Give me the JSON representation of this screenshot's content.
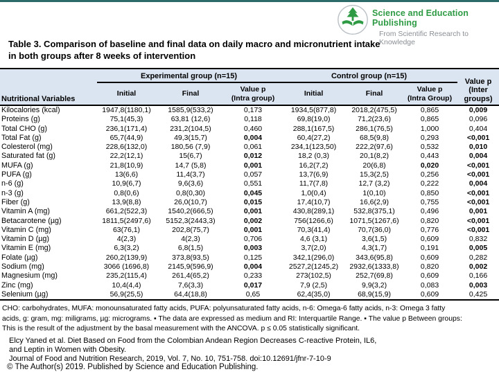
{
  "brand": {
    "name": "Science and Education Publishing",
    "tagline": "From Scientific Research to Knowledge",
    "logo_green": "#2e9b44",
    "tagline_gray": "#8a8f94"
  },
  "title": "Table 3. Comparison of baseline and final data on daily macro and micronutrient intake\nin both groups after 8 weeks of intervention",
  "table": {
    "header": {
      "variables": "Nutritional Variables",
      "experimental_group": "Experimental group (n=15)",
      "control_group": "Control group (n=15)",
      "inter_group": "Value p\n(Inter\ngroups)"
    },
    "sub_headers": [
      "Initial",
      "Final",
      "Value p\n(Intra group)",
      "Initial",
      "Final",
      "Value p\n(Intra Group)"
    ],
    "rows": [
      {
        "label": "Kilocalories (kcal)",
        "values": [
          "1947,8(1180,1)",
          "1585,9(533,2)",
          "0,173",
          "1934,5(877,8)",
          "2018,2(475,5)",
          "0,865",
          "0,009"
        ],
        "bold": [
          6
        ]
      },
      {
        "label": "Proteins (g)",
        "values": [
          "75,1(45,3)",
          "63,81 (12,6)",
          "0,118",
          "69,8(19,0)",
          "71,2(23,6)",
          "0,865",
          "0,096"
        ],
        "bold": []
      },
      {
        "label": "Total CHO (g)",
        "values": [
          "236,1(171,4)",
          "231,2(104,5)",
          "0,460",
          "288,1(167,5)",
          "286,1(76,5)",
          "1,000",
          "0,404"
        ],
        "bold": []
      },
      {
        "label": "Total Fat (g)",
        "values": [
          "65,7(44,9)",
          "49,3(15,7)",
          "0,004",
          "60,4(27,2)",
          "68,5(9,8)",
          "0,293",
          "<0,001"
        ],
        "bold": [
          2,
          6
        ]
      },
      {
        "label": "Colesterol (mg)",
        "values": [
          "228,6(132,0)",
          "180,56 (7,9)",
          "0,061",
          "234,1(123,50)",
          "222,2(97,6)",
          "0,532",
          "0,010"
        ],
        "bold": [
          6
        ]
      },
      {
        "label": "Saturated fat (g)",
        "values": [
          "22,2(12,1)",
          "15(6,7)",
          "0,012",
          "18,2 (0,3)",
          "20,1(8,2)",
          "0,443",
          "0,004"
        ],
        "bold": [
          2,
          6
        ]
      },
      {
        "label": "MUFA (g)",
        "values": [
          "21,8(10,9)",
          "14,7 (5,8)",
          "0,001",
          "16,2(7,2)",
          "20(6,8)",
          "0,020",
          "<0,001"
        ],
        "bold": [
          2,
          5,
          6
        ]
      },
      {
        "label": "PUFA (g)",
        "values": [
          "13(6,6)",
          "11,4(3,7)",
          "0,057",
          "13,7(6,9)",
          "15,3(2,5)",
          "0,256",
          "<0,001"
        ],
        "bold": [
          6
        ]
      },
      {
        "label": "n-6 (g)",
        "values": [
          "10,9(6,7)",
          "9,6(3,6)",
          "0,551",
          "11,7(7,8)",
          "12,7 (3,2)",
          "0,222",
          "0,004"
        ],
        "bold": [
          6
        ]
      },
      {
        "label": "n-3 (g)",
        "values": [
          "0,8(0,6)",
          "0,8(0,30)",
          "0,045",
          "1,0(0,4)",
          "1(0,10)",
          "0,850",
          "<0,001"
        ],
        "bold": [
          2,
          6
        ]
      },
      {
        "label": "Fiber (g)",
        "values": [
          "13,9(8,8)",
          "26,0(10,7)",
          "0,015",
          "17,4(10,7)",
          "16,6(2,9)",
          "0,755",
          "<0,001"
        ],
        "bold": [
          2,
          6
        ]
      },
      {
        "label": "Vitamin A (mg)",
        "values": [
          "661,2(522,3)",
          "1540,2(666,5)",
          "0,001",
          "430,8(289,1)",
          "532,8(375,1)",
          "0,496",
          "0,001"
        ],
        "bold": [
          2,
          6
        ]
      },
      {
        "label": "Betacarotene (µg)",
        "values": [
          "1811,5(2497,6)",
          "5152,3(2443,3)",
          "0,002",
          "756(1266,6)",
          "1071,5(1267,6)",
          "0,820",
          "<0,001"
        ],
        "bold": [
          2,
          6
        ]
      },
      {
        "label": "Vitamin C (mg)",
        "values": [
          "63(76,1)",
          "202,8(75,7)",
          "0,001",
          "70,3(41,4)",
          "70,7(36,0)",
          "0,776",
          "<0,001"
        ],
        "bold": [
          2,
          6
        ]
      },
      {
        "label": "Vitamin D (µg)",
        "values": [
          "4(2,3)",
          "4(2,3)",
          "0,706",
          "4,6 (3,1)",
          "3,6(1,5)",
          "0,609",
          "0,832"
        ],
        "bold": []
      },
      {
        "label": "Vitamin E (mg)",
        "values": [
          "6,3(3,2)",
          "6,8(1,5)",
          "0,003",
          "3,7(2,0)",
          "4,3(1,7)",
          "0,191",
          "0,005"
        ],
        "bold": [
          2,
          6
        ]
      },
      {
        "label": "Folate (µg)",
        "values": [
          "260,2(139,9)",
          "373,8(93,5)",
          "0,125",
          "342,1(296,0)",
          "343,6(95,8)",
          "0,609",
          "0,282"
        ],
        "bold": []
      },
      {
        "label": "Sodium (mg)",
        "values": [
          "3066 (1696,8)",
          "2145,9(596,9)",
          "0,004",
          "2527,2(1245,2)",
          "2932,6(1333,8)",
          "0,820",
          "0,002"
        ],
        "bold": [
          2,
          6
        ]
      },
      {
        "label": "Magnesium (mg)",
        "values": [
          "235,2(115,4)",
          "261,4(65,2)",
          "0,233",
          "273(102,5)",
          "252,7(69,8)",
          "0,609",
          "0,166"
        ],
        "bold": []
      },
      {
        "label": "Zinc (mg)",
        "values": [
          "10,4(4,4)",
          "7,6(3,3)",
          "0,017",
          "7,9 (2,5)",
          "9,9(3,2)",
          "0,083",
          "0,003"
        ],
        "bold": [
          2,
          6
        ]
      },
      {
        "label": "Selenium (µg)",
        "values": [
          "56,9(25,5)",
          "64,4(18,8)",
          "0,65",
          "62,4(35,0)",
          "68,9(15,9)",
          "0,609",
          "0,425"
        ],
        "bold": []
      }
    ],
    "header_bg": "#dbe5f1"
  },
  "footnote": "CHO: carbohydrates, MUFA: monounsaturated fatty acids, PUFA: polyunsaturated fatty acids, n-6: Omega-6 fatty acids, n-3: Omega 3 fatty\nacids, g: gram, mg: miligrams, µg: micrograms. ▪ The data are expressed as medium and RI: Interquartile Range. ▪ The value p Between groups:\nThis is the result of the adjustment by the basal measurement with the ANCOVA.  p ≤ 0.05 statistically significant.",
  "citation": "Elcy Yaned et al. Diet Based on Food from the Colombian Andean Region Decreases C-reactive Protein, IL6,\nand Leptin in Women with Obesity.\nJournal of Food and Nutrition Research, 2019, Vol. 7, No. 10, 751-758. doi:10.12691/jfnr-7-10-9",
  "copyright": "© The Author(s) 2019. Published by Science and Education Publishing."
}
